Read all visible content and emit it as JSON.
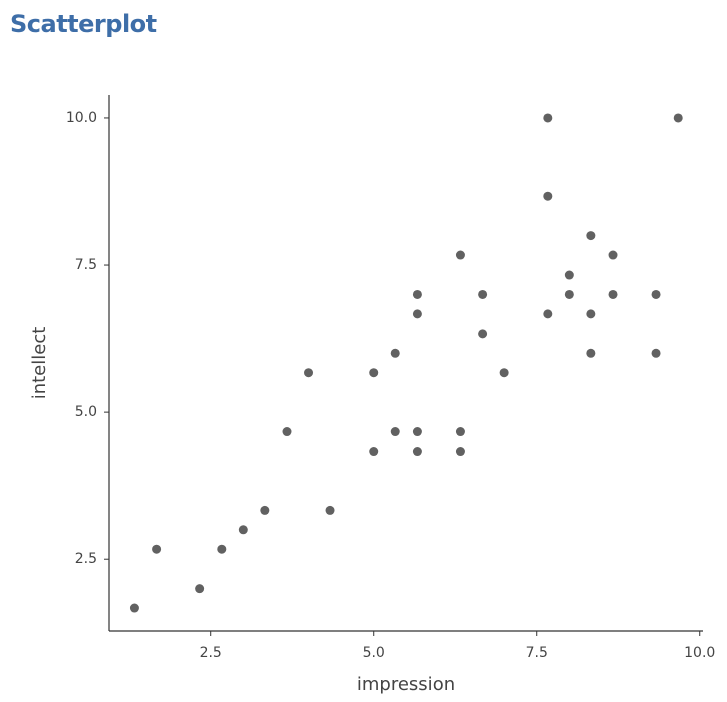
{
  "chart_data": {
    "type": "scatter",
    "title": "Scatterplot",
    "x_label": "impression",
    "y_label": "intellect",
    "color": "#3a3a3a",
    "x": [
      1.33,
      1.67,
      2.33,
      2.67,
      3.0,
      3.33,
      3.67,
      4.0,
      4.33,
      5.0,
      5.0,
      5.33,
      5.33,
      5.67,
      5.67,
      5.67,
      5.67,
      6.33,
      6.33,
      6.33,
      6.67,
      6.67,
      7.0,
      7.67,
      7.67,
      7.67,
      8.0,
      8.0,
      8.33,
      8.33,
      8.33,
      8.67,
      8.67,
      9.33,
      9.33,
      9.67
    ],
    "values": [
      1.67,
      2.67,
      2.0,
      2.67,
      3.0,
      3.33,
      4.67,
      5.67,
      3.33,
      4.33,
      5.67,
      6.0,
      4.67,
      7.0,
      6.67,
      4.67,
      4.33,
      7.67,
      4.67,
      4.33,
      7.0,
      6.33,
      5.67,
      10.0,
      8.67,
      6.67,
      7.33,
      7.0,
      8.0,
      6.67,
      6.0,
      7.67,
      7.0,
      7.0,
      6.0,
      10.0
    ],
    "xlim": [
      0.94,
      10.05
    ],
    "ylim": [
      1.28,
      10.39
    ],
    "xticks": [
      2.5,
      {
        "value": 5,
        "label": "5.0"
      },
      7.5,
      {
        "value": 10,
        "label": "10.0"
      }
    ],
    "yticks": [
      2.5,
      {
        "value": 5,
        "label": "5.0"
      },
      7.5,
      {
        "value": 10,
        "label": "10.0"
      }
    ]
  }
}
